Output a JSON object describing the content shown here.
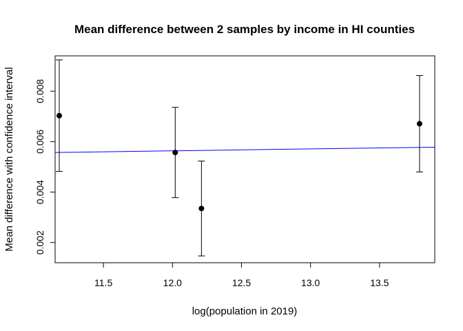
{
  "chart_data": {
    "type": "scatter",
    "title": "Mean difference between 2 samples by income in HI counties",
    "xlabel": "log(population in 2019)",
    "ylabel": "Mean difference with confidence interval",
    "xlim": [
      11.15,
      13.9
    ],
    "ylim": [
      0.0012,
      0.0094
    ],
    "x_ticks": [
      11.5,
      12.0,
      12.5,
      13.0,
      13.5
    ],
    "x_tick_labels": [
      "11.5",
      "12.0",
      "12.5",
      "13.0",
      "13.5"
    ],
    "y_ticks": [
      0.002,
      0.004,
      0.006,
      0.008
    ],
    "y_tick_labels": [
      "0.002",
      "0.004",
      "0.006",
      "0.008"
    ],
    "points": [
      {
        "x": 11.18,
        "y": 0.00703,
        "lower": 0.00482,
        "upper": 0.00924
      },
      {
        "x": 12.02,
        "y": 0.00557,
        "lower": 0.00378,
        "upper": 0.00736
      },
      {
        "x": 12.21,
        "y": 0.00335,
        "lower": 0.00147,
        "upper": 0.00523
      },
      {
        "x": 13.79,
        "y": 0.00671,
        "lower": 0.0048,
        "upper": 0.00862
      }
    ],
    "trend_line": {
      "color": "#0000ff",
      "intercept_at_xmin": 0.00557,
      "value_at_xmax": 0.00578
    },
    "grid": false,
    "legend": "none",
    "colors": {
      "points": "#000000",
      "error_bars": "#000000",
      "trend": "#0000ff"
    }
  }
}
